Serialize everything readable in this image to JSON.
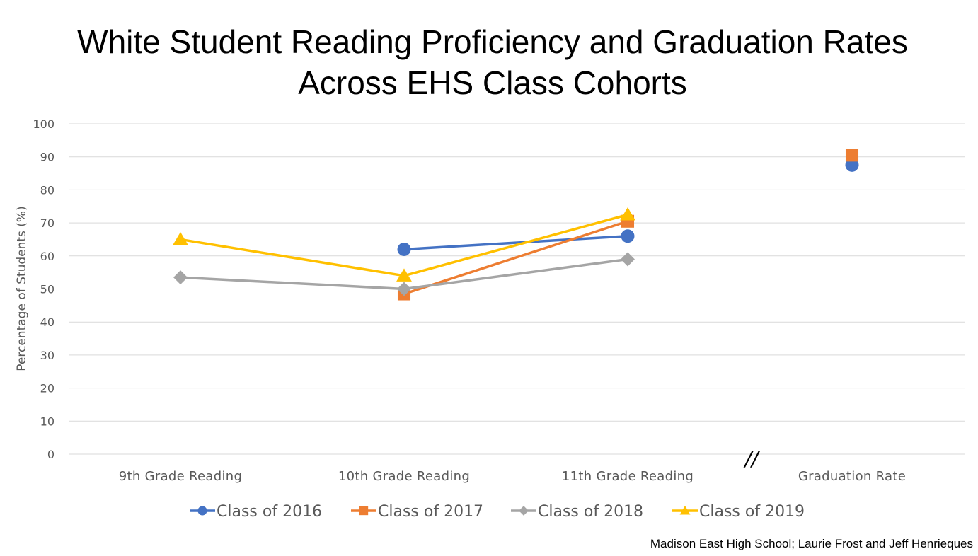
{
  "chart_data": {
    "type": "line",
    "title_line1": "White Student Reading Proficiency and Graduation Rates",
    "title_line2": "Across EHS Class Cohorts",
    "ylabel": "Percentage of Students (%)",
    "xlabel": "",
    "ylim": [
      0,
      100
    ],
    "yticks": [
      0,
      10,
      20,
      30,
      40,
      50,
      60,
      70,
      80,
      90,
      100
    ],
    "categories": [
      "9th Grade Reading",
      "10th Grade Reading",
      "11th Grade Reading",
      "Graduation Rate"
    ],
    "axis_break_mark": "//",
    "grid": true,
    "legend_position": "bottom",
    "series": [
      {
        "name": "Class of 2016",
        "color": "#4472C4",
        "marker": "circle",
        "values": [
          null,
          62,
          66,
          87.5
        ]
      },
      {
        "name": "Class of 2017",
        "color": "#ED7D31",
        "marker": "square",
        "values": [
          null,
          48.5,
          70.5,
          90.5
        ]
      },
      {
        "name": "Class of 2018",
        "color": "#A5A5A5",
        "marker": "diamond",
        "values": [
          53.5,
          50,
          59,
          null
        ]
      },
      {
        "name": "Class of 2019",
        "color": "#FFC000",
        "marker": "triangle",
        "values": [
          65,
          54,
          72.5,
          null
        ]
      }
    ],
    "connected_categories": 3,
    "source": "Madison East High School; Laurie Frost and Jeff Henrieques"
  }
}
